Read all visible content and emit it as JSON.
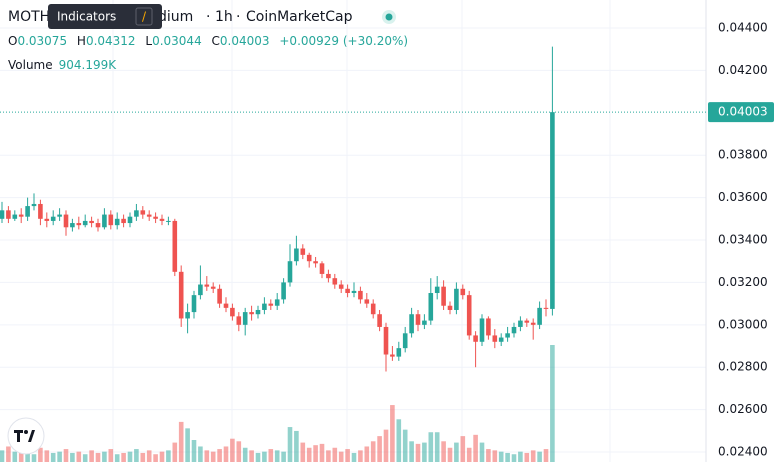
{
  "header": {
    "symbol_start": "MOTH",
    "tooltip": "Indicators",
    "tooltip_key": "/",
    "symbol_end": "dium",
    "interval": "1h",
    "source": "CoinMarketCap",
    "ohlc_labels": [
      "O",
      "H",
      "L",
      "C"
    ],
    "change": "+0.00929 (+30.20%)",
    "volume_label": "Volume",
    "volume_value": "904.199K"
  },
  "chart_data": {
    "type": "candlestick",
    "up_color": "#26a69a",
    "down_color": "#ef5350",
    "ylim": [
      0.02353,
      0.04532
    ],
    "yticks": [
      {
        "value": 0.044,
        "label": "0.04400"
      },
      {
        "value": 0.042,
        "label": "0.04200"
      },
      {
        "value": 0.038,
        "label": "0.03800"
      },
      {
        "value": 0.036,
        "label": "0.03600"
      },
      {
        "value": 0.034,
        "label": "0.03400"
      },
      {
        "value": 0.032,
        "label": "0.03200"
      },
      {
        "value": 0.03,
        "label": "0.03000"
      },
      {
        "value": 0.028,
        "label": "0.02800"
      },
      {
        "value": 0.026,
        "label": "0.02600"
      },
      {
        "value": 0.024,
        "label": "0.02400"
      }
    ],
    "open": [
      0.035,
      0.0354,
      0.035,
      0.0352,
      0.0351,
      0.0356,
      0.0357,
      0.035,
      0.0349,
      0.0351,
      0.0352,
      0.0346,
      0.0348,
      0.0347,
      0.0349,
      0.0348,
      0.0346,
      0.0352,
      0.0347,
      0.035,
      0.0348,
      0.0351,
      0.0354,
      0.0352,
      0.0351,
      0.035,
      0.0349,
      0.0349,
      0.0325,
      0.0303,
      0.0306,
      0.0314,
      0.0319,
      0.0318,
      0.0317,
      0.031,
      0.0308,
      0.0304,
      0.03,
      0.0306,
      0.0305,
      0.0307,
      0.031,
      0.0309,
      0.0312,
      0.032,
      0.033,
      0.0336,
      0.0333,
      0.033,
      0.0329,
      0.0324,
      0.0322,
      0.0319,
      0.0317,
      0.0315,
      0.0316,
      0.0312,
      0.031,
      0.0305,
      0.0299,
      0.0286,
      0.0285,
      0.0289,
      0.0296,
      0.0305,
      0.03,
      0.0302,
      0.0315,
      0.0318,
      0.0309,
      0.0307,
      0.0317,
      0.0314,
      0.0295,
      0.0292,
      0.0303,
      0.0295,
      0.0292,
      0.0294,
      0.0296,
      0.0299,
      0.0302,
      0.0301,
      0.03,
      0.0308,
      0.03075
    ],
    "high": [
      0.0358,
      0.0356,
      0.0354,
      0.0355,
      0.036,
      0.0362,
      0.0359,
      0.0353,
      0.0354,
      0.0355,
      0.0354,
      0.035,
      0.0351,
      0.0352,
      0.0351,
      0.035,
      0.0355,
      0.0354,
      0.0353,
      0.0352,
      0.0353,
      0.0357,
      0.0356,
      0.0354,
      0.0353,
      0.0352,
      0.0351,
      0.035,
      0.0328,
      0.031,
      0.0316,
      0.0328,
      0.0323,
      0.032,
      0.0319,
      0.0313,
      0.031,
      0.0306,
      0.0308,
      0.0309,
      0.0309,
      0.0313,
      0.0312,
      0.0315,
      0.0322,
      0.0338,
      0.0342,
      0.0338,
      0.0334,
      0.0332,
      0.033,
      0.0326,
      0.0324,
      0.0321,
      0.0319,
      0.032,
      0.0318,
      0.0315,
      0.0312,
      0.0307,
      0.0301,
      0.029,
      0.0292,
      0.0299,
      0.0308,
      0.0307,
      0.0305,
      0.0322,
      0.0323,
      0.0321,
      0.0311,
      0.032,
      0.0319,
      0.0316,
      0.0297,
      0.0305,
      0.0304,
      0.0298,
      0.0296,
      0.0299,
      0.0301,
      0.0304,
      0.0303,
      0.0303,
      0.0311,
      0.0312,
      0.04312
    ],
    "low": [
      0.0348,
      0.0348,
      0.0349,
      0.0348,
      0.0349,
      0.0354,
      0.0347,
      0.0346,
      0.0347,
      0.0349,
      0.0342,
      0.0344,
      0.0345,
      0.0346,
      0.0346,
      0.0344,
      0.0345,
      0.0345,
      0.0345,
      0.0346,
      0.0346,
      0.0349,
      0.035,
      0.0349,
      0.0348,
      0.0347,
      0.0347,
      0.0323,
      0.0299,
      0.0296,
      0.0303,
      0.0312,
      0.0316,
      0.0315,
      0.0308,
      0.0306,
      0.0302,
      0.0297,
      0.0295,
      0.0302,
      0.0303,
      0.0305,
      0.0307,
      0.0307,
      0.031,
      0.0318,
      0.0328,
      0.0331,
      0.0327,
      0.0327,
      0.0322,
      0.032,
      0.0317,
      0.0315,
      0.0313,
      0.0313,
      0.031,
      0.0308,
      0.0303,
      0.0297,
      0.0278,
      0.0283,
      0.0283,
      0.0287,
      0.0294,
      0.0297,
      0.0298,
      0.03,
      0.0312,
      0.0307,
      0.0305,
      0.0305,
      0.0312,
      0.0293,
      0.028,
      0.029,
      0.0293,
      0.0289,
      0.029,
      0.0292,
      0.0294,
      0.0297,
      0.0299,
      0.0293,
      0.0298,
      0.0304,
      0.03044
    ],
    "close": [
      0.0354,
      0.035,
      0.0352,
      0.0351,
      0.0356,
      0.0357,
      0.035,
      0.0349,
      0.0351,
      0.0352,
      0.0346,
      0.0348,
      0.0347,
      0.0349,
      0.0348,
      0.0346,
      0.0352,
      0.0347,
      0.035,
      0.0348,
      0.0351,
      0.0354,
      0.0352,
      0.0351,
      0.035,
      0.0349,
      0.0349,
      0.0325,
      0.0303,
      0.0306,
      0.0314,
      0.0319,
      0.0318,
      0.0317,
      0.031,
      0.0308,
      0.0304,
      0.03,
      0.0306,
      0.0305,
      0.0307,
      0.031,
      0.0309,
      0.0312,
      0.032,
      0.033,
      0.0336,
      0.0333,
      0.033,
      0.0329,
      0.0324,
      0.0322,
      0.0319,
      0.0317,
      0.0315,
      0.0316,
      0.0312,
      0.031,
      0.0305,
      0.0299,
      0.0286,
      0.0285,
      0.0289,
      0.0296,
      0.0305,
      0.03,
      0.0302,
      0.0315,
      0.0318,
      0.0309,
      0.0307,
      0.0317,
      0.0314,
      0.0295,
      0.0292,
      0.0303,
      0.0295,
      0.0292,
      0.0294,
      0.0296,
      0.0299,
      0.0302,
      0.0301,
      0.03,
      0.0308,
      0.03075,
      0.04003
    ],
    "volume": [
      90000,
      120000,
      80000,
      70000,
      100000,
      60000,
      110000,
      90000,
      70000,
      80000,
      100000,
      70000,
      80000,
      60000,
      90000,
      70000,
      80000,
      100000,
      60000,
      70000,
      80000,
      100000,
      70000,
      90000,
      60000,
      80000,
      90000,
      150000,
      310000,
      260000,
      170000,
      120000,
      90000,
      80000,
      100000,
      120000,
      180000,
      160000,
      110000,
      90000,
      70000,
      80000,
      100000,
      90000,
      80000,
      270000,
      240000,
      150000,
      110000,
      130000,
      140000,
      90000,
      110000,
      80000,
      100000,
      70000,
      90000,
      120000,
      160000,
      200000,
      250000,
      440000,
      330000,
      250000,
      160000,
      140000,
      150000,
      230000,
      230000,
      160000,
      110000,
      150000,
      200000,
      110000,
      210000,
      150000,
      100000,
      90000,
      80000,
      70000,
      60000,
      80000,
      70000,
      90000,
      80000,
      100000,
      904199
    ]
  }
}
